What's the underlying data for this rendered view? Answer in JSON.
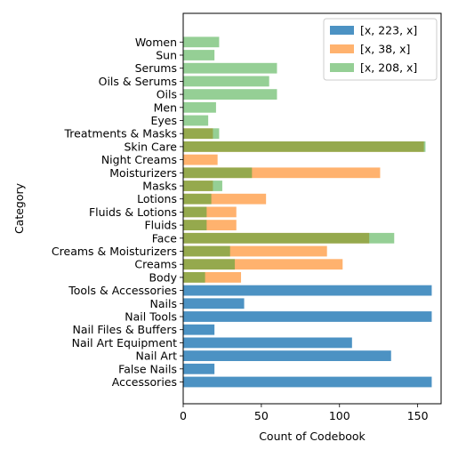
{
  "chart_data": {
    "type": "bar",
    "orientation": "horizontal",
    "xlabel": "Count of Codebook",
    "ylabel": "Category",
    "xlim": [
      0,
      165
    ],
    "xticks": [
      0,
      50,
      100,
      150
    ],
    "grid": false,
    "legend_position": "top-right",
    "categories": [
      "Accessories",
      "False Nails",
      "Nail Art",
      "Nail Art Equipment",
      "Nail Files & Buffers",
      "Nail Tools",
      "Nails",
      "Tools & Accessories",
      "Body",
      "Creams",
      "Creams & Moisturizers",
      "Face",
      "Fluids",
      "Fluids & Lotions",
      "Lotions",
      "Masks",
      "Moisturizers",
      "Night Creams",
      "Skin Care",
      "Treatments & Masks",
      "Eyes",
      "Men",
      "Oils",
      "Oils & Serums",
      "Serums",
      "Sun",
      "Women"
    ],
    "series": [
      {
        "name": "[x, 223, x]",
        "color": "#1f77b4",
        "values": [
          159,
          20,
          133,
          108,
          20,
          159,
          39,
          159,
          null,
          null,
          null,
          null,
          null,
          null,
          null,
          null,
          null,
          null,
          null,
          null,
          null,
          null,
          null,
          null,
          null,
          null,
          null
        ]
      },
      {
        "name": "[x, 38, x]",
        "color": "#ff7f0e",
        "values": [
          null,
          null,
          null,
          null,
          null,
          null,
          null,
          null,
          37,
          102,
          92,
          119,
          34,
          34,
          53,
          19,
          126,
          22,
          154,
          19,
          null,
          null,
          null,
          null,
          null,
          null,
          null
        ]
      },
      {
        "name": "[x, 208, x]",
        "color": "#2ca02c",
        "values": [
          null,
          null,
          null,
          null,
          null,
          null,
          null,
          null,
          14,
          33,
          30,
          135,
          15,
          15,
          18,
          25,
          44,
          null,
          155,
          23,
          16,
          21,
          60,
          55,
          60,
          20,
          23
        ]
      }
    ],
    "bar_alpha": [
      0.8,
      0.6,
      0.5
    ]
  }
}
